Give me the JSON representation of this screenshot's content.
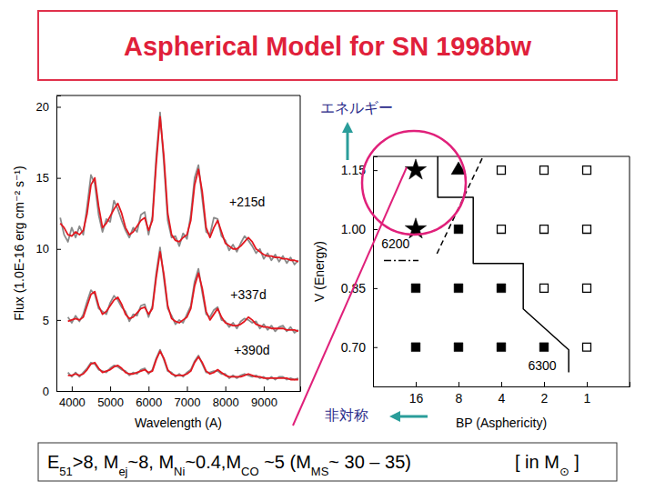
{
  "title": "Aspherical Model for SN 1998bw",
  "energy_label": "エネルギー",
  "asymmetry_label": "非対称",
  "footer": {
    "formula": [
      {
        "text": "E"
      },
      {
        "text": "51",
        "sub": true
      },
      {
        "text": ">8, M"
      },
      {
        "text": "ej",
        "sub": true
      },
      {
        "text": "~8, M"
      },
      {
        "text": "Ni",
        "sub": true
      },
      {
        "text": "~0.4,M"
      },
      {
        "text": "CO",
        "sub": true
      },
      {
        "text": " ~5 (M"
      },
      {
        "text": "MS",
        "sub": true
      },
      {
        "text": "~ 30 – 35)"
      }
    ],
    "unit": [
      {
        "text": "[ in M"
      },
      {
        "text": "⊙",
        "sub": true
      },
      {
        "text": " ]"
      }
    ]
  },
  "chart_data": [
    {
      "type": "line",
      "xlabel": "Wavelength (A)",
      "ylabel": "Flux (1.0E-16 erg cm⁻² s⁻¹)",
      "xlim": [
        3600,
        9950
      ],
      "xticks": [
        4000,
        5000,
        6000,
        7000,
        8000,
        9000
      ],
      "ylim": [
        0,
        20.8
      ],
      "yticks": [
        0,
        5,
        10,
        15,
        20
      ],
      "x": [
        3700,
        3800,
        3900,
        4000,
        4100,
        4200,
        4300,
        4400,
        4500,
        4600,
        4700,
        4800,
        4900,
        5000,
        5100,
        5200,
        5300,
        5400,
        5500,
        5600,
        5700,
        5800,
        5900,
        6000,
        6100,
        6200,
        6300,
        6400,
        6500,
        6600,
        6700,
        6800,
        6900,
        7000,
        7100,
        7200,
        7300,
        7400,
        7500,
        7600,
        7700,
        7800,
        7900,
        8000,
        8100,
        8200,
        8300,
        8400,
        8500,
        8600,
        8700,
        8800,
        8900,
        9000,
        9100,
        9200,
        9300,
        9400,
        9500,
        9600,
        9700,
        9800,
        9900
      ],
      "series": [
        {
          "color": "#8a8a8a",
          "values": [
            12.2,
            11.0,
            10.5,
            11.5,
            10.8,
            11.6,
            11.0,
            13.0,
            15.2,
            14.6,
            12.4,
            11.2,
            12.1,
            11.9,
            13.4,
            12.8,
            12.0,
            11.3,
            10.8,
            11.5,
            11.2,
            12.4,
            12.6,
            11.0,
            12.3,
            16.5,
            19.6,
            16.0,
            12.0,
            10.8,
            10.9,
            10.2,
            11.1,
            10.7,
            12.4,
            15.0,
            15.9,
            13.5,
            11.2,
            11.0,
            12.2,
            12.1,
            10.9,
            10.6,
            9.9,
            10.3,
            9.8,
            10.4,
            10.9,
            10.6,
            10.2,
            9.7,
            10.0,
            9.3,
            9.7,
            9.2,
            9.6,
            9.1,
            9.5,
            9.0,
            9.4,
            8.9,
            9.2
          ]
        },
        {
          "color": "#e3171f",
          "values": [
            11.8,
            11.5,
            11.0,
            10.9,
            11.2,
            11.0,
            11.3,
            12.5,
            14.5,
            15.0,
            13.0,
            11.5,
            11.8,
            12.3,
            12.8,
            13.2,
            12.5,
            11.5,
            11.0,
            11.2,
            11.6,
            12.0,
            12.2,
            11.3,
            12.0,
            16.0,
            19.3,
            16.5,
            12.5,
            11.0,
            10.6,
            10.5,
            10.8,
            11.0,
            12.0,
            14.5,
            15.6,
            14.0,
            11.5,
            10.8,
            11.5,
            12.0,
            11.2,
            10.4,
            10.2,
            10.0,
            10.0,
            10.2,
            10.5,
            10.8,
            10.5,
            10.0,
            9.8,
            9.6,
            9.5,
            9.5,
            9.4,
            9.4,
            9.3,
            9.3,
            9.2,
            9.2,
            9.1
          ]
        },
        {
          "color": "#8a8a8a",
          "values": [
            null,
            null,
            5.2,
            4.8,
            5.3,
            4.9,
            5.4,
            6.3,
            7.1,
            6.8,
            5.8,
            5.6,
            5.4,
            6.2,
            6.7,
            6.4,
            5.9,
            5.6,
            4.9,
            5.4,
            5.3,
            6.0,
            6.1,
            5.2,
            6.0,
            8.3,
            10.1,
            7.9,
            5.8,
            5.3,
            4.7,
            5.0,
            4.8,
            5.4,
            6.0,
            7.7,
            8.6,
            6.9,
            5.4,
            5.2,
            5.7,
            5.9,
            5.0,
            4.9,
            4.5,
            4.8,
            4.4,
            4.9,
            5.1,
            5.0,
            4.8,
            4.9,
            4.4,
            4.7,
            4.3,
            4.6,
            4.2,
            4.5,
            4.6,
            4.2,
            4.5,
            4.1,
            4.3
          ]
        },
        {
          "color": "#e3171f",
          "values": [
            null,
            null,
            4.9,
            5.0,
            5.1,
            5.0,
            5.2,
            6.0,
            6.8,
            7.0,
            6.0,
            5.4,
            5.6,
            6.0,
            6.4,
            6.6,
            6.1,
            5.4,
            5.1,
            5.2,
            5.5,
            5.8,
            5.9,
            5.4,
            5.8,
            8.0,
            9.8,
            8.2,
            6.0,
            5.1,
            4.9,
            4.8,
            5.0,
            5.2,
            5.8,
            7.4,
            8.3,
            7.2,
            5.6,
            5.0,
            5.4,
            5.8,
            5.2,
            4.8,
            4.7,
            4.6,
            4.6,
            4.7,
            4.9,
            5.2,
            5.0,
            4.7,
            4.6,
            4.5,
            4.5,
            4.4,
            4.4,
            4.4,
            4.4,
            4.3,
            4.3,
            4.3,
            4.2
          ]
        },
        {
          "color": "#8a8a8a",
          "values": [
            null,
            null,
            1.3,
            1.0,
            1.3,
            1.0,
            1.3,
            1.6,
            2.0,
            1.9,
            1.5,
            1.4,
            1.3,
            1.6,
            1.8,
            1.7,
            1.5,
            1.4,
            1.1,
            1.3,
            1.2,
            1.5,
            1.6,
            1.2,
            1.5,
            2.3,
            2.9,
            2.2,
            1.4,
            1.3,
            1.0,
            1.2,
            1.0,
            1.3,
            1.5,
            2.1,
            2.5,
            1.9,
            1.3,
            1.3,
            1.4,
            1.4,
            1.2,
            1.2,
            0.9,
            1.1,
            0.9,
            1.1,
            1.2,
            1.1,
            1.0,
            1.1,
            0.9,
            1.0,
            0.8,
            1.0,
            0.8,
            1.0,
            1.0,
            0.8,
            0.9,
            0.8,
            0.9
          ]
        },
        {
          "color": "#e3171f",
          "values": [
            null,
            null,
            1.1,
            1.1,
            1.2,
            1.1,
            1.2,
            1.5,
            1.9,
            2.0,
            1.6,
            1.3,
            1.4,
            1.5,
            1.7,
            1.8,
            1.6,
            1.3,
            1.2,
            1.2,
            1.3,
            1.4,
            1.5,
            1.3,
            1.4,
            2.2,
            2.8,
            2.3,
            1.5,
            1.2,
            1.1,
            1.1,
            1.1,
            1.2,
            1.4,
            2.0,
            2.4,
            2.0,
            1.4,
            1.2,
            1.3,
            1.5,
            1.3,
            1.1,
            1.0,
            1.0,
            1.0,
            1.0,
            1.1,
            1.2,
            1.1,
            1.0,
            1.0,
            0.9,
            0.9,
            0.9,
            0.9,
            0.9,
            0.9,
            0.9,
            0.8,
            0.8,
            0.8
          ]
        }
      ],
      "annotations": [
        {
          "text": "+215d",
          "x": 8570,
          "y": 13.2
        },
        {
          "text": "+337d",
          "x": 8600,
          "y": 6.7
        },
        {
          "text": "+390d",
          "x": 8690,
          "y": 2.8
        }
      ]
    },
    {
      "type": "scatter",
      "xlabel": "BP (Asphericity)",
      "ylabel": "V (Energy)",
      "log": "x",
      "xlim": [
        32,
        0.5
      ],
      "xticks": [
        16,
        8,
        4,
        2,
        1
      ],
      "ylim": [
        0.6,
        1.185
      ],
      "yticks": [
        {
          "value": 0.7,
          "label": "0.70"
        },
        {
          "value": 0.85,
          "label": "0.85"
        },
        {
          "value": 1.0,
          "label": "1.00"
        },
        {
          "value": 1.15,
          "label": "1.15"
        }
      ],
      "series": [
        {
          "marker": "star",
          "color": "#000000",
          "x": [
            16,
            16
          ],
          "values": [
            1.15,
            1.0
          ]
        },
        {
          "marker": "triangle",
          "color": "#000000",
          "x": [
            8
          ],
          "values": [
            1.15
          ]
        },
        {
          "marker": "square",
          "color": "#000000",
          "x": [
            8,
            16,
            8,
            4,
            16,
            8,
            4,
            2
          ],
          "values": [
            1.0,
            0.85,
            0.85,
            0.85,
            0.7,
            0.7,
            0.7,
            0.7
          ]
        },
        {
          "marker": "open-square",
          "color": "#000000",
          "x": [
            4,
            2,
            1,
            4,
            2,
            1,
            2,
            1,
            1
          ],
          "values": [
            1.15,
            1.15,
            1.15,
            1.0,
            1.0,
            1.0,
            0.85,
            0.85,
            0.7
          ]
        },
        {
          "type": "line",
          "line_style": "solid",
          "color": "#000000",
          "x": [
            11.2,
            11.2,
            6.3,
            6.3,
            2.8,
            2.8,
            1.34,
            1.34
          ],
          "values": [
            1.185,
            1.081,
            1.081,
            0.913,
            0.913,
            0.797,
            0.693,
            0.636
          ]
        },
        {
          "type": "line",
          "line_style": "dashed",
          "color": "#000000",
          "x": [
            5.45,
            11.4
          ],
          "values": [
            1.18,
            0.936
          ]
        },
        {
          "type": "line",
          "line_style": "dashdot",
          "color": "#000000",
          "x": [
            26.8,
            15.3
          ],
          "values": [
            0.92,
            0.92
          ]
        }
      ],
      "annotations": [
        {
          "text": "6200",
          "x": 22.2,
          "y": 0.959
        },
        {
          "text": "6300",
          "x": 2.06,
          "y": 0.65
        }
      ]
    }
  ]
}
